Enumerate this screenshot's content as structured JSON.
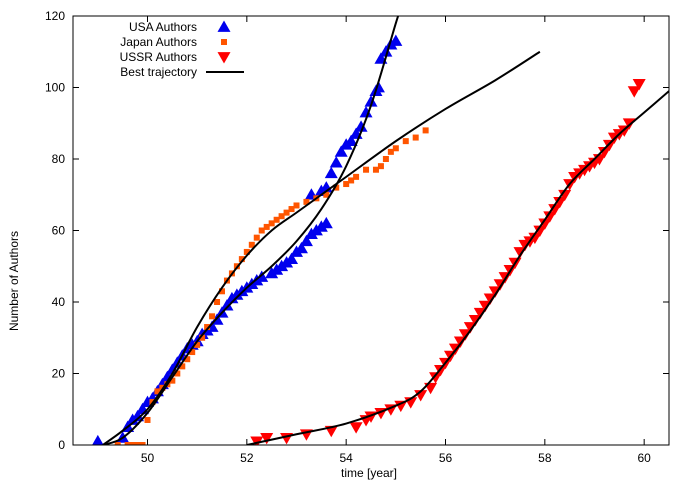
{
  "chart_data": {
    "type": "scatter",
    "xlabel": "time [year]",
    "ylabel": "Number of Authors",
    "xlim": [
      48.5,
      60.5
    ],
    "ylim": [
      0,
      120
    ],
    "x_ticks": [
      50,
      52,
      54,
      56,
      58,
      60
    ],
    "y_ticks": [
      0,
      20,
      40,
      60,
      80,
      100,
      120
    ],
    "x_tick_labels": [
      "50",
      "52",
      "54",
      "56",
      "58",
      "60"
    ],
    "y_tick_labels": [
      "0",
      "20",
      "40",
      "60",
      "80",
      "100",
      "120"
    ],
    "grid": false,
    "legend_position": "top-left",
    "series": [
      {
        "name": "USA Authors",
        "marker": "triangle-up",
        "color": "#0000ee",
        "points": [
          [
            49.0,
            1
          ],
          [
            49.5,
            2
          ],
          [
            49.6,
            5
          ],
          [
            49.7,
            7
          ],
          [
            49.8,
            8
          ],
          [
            49.9,
            10
          ],
          [
            50.0,
            12
          ],
          [
            50.1,
            13
          ],
          [
            50.2,
            15
          ],
          [
            50.3,
            17
          ],
          [
            50.4,
            19
          ],
          [
            50.5,
            21
          ],
          [
            50.6,
            23
          ],
          [
            50.7,
            25
          ],
          [
            50.8,
            27
          ],
          [
            50.9,
            28
          ],
          [
            51.0,
            29
          ],
          [
            51.1,
            31
          ],
          [
            51.2,
            32
          ],
          [
            51.3,
            33
          ],
          [
            51.4,
            35
          ],
          [
            51.5,
            37
          ],
          [
            51.6,
            39
          ],
          [
            51.7,
            41
          ],
          [
            51.8,
            42
          ],
          [
            51.9,
            43
          ],
          [
            52.0,
            44
          ],
          [
            52.1,
            45
          ],
          [
            52.2,
            46
          ],
          [
            52.3,
            47
          ],
          [
            52.5,
            48
          ],
          [
            52.6,
            49
          ],
          [
            52.7,
            50
          ],
          [
            52.8,
            51
          ],
          [
            52.9,
            52
          ],
          [
            53.0,
            54
          ],
          [
            53.1,
            55
          ],
          [
            53.2,
            57
          ],
          [
            53.3,
            59
          ],
          [
            53.4,
            60
          ],
          [
            53.5,
            61
          ],
          [
            53.6,
            62
          ],
          [
            53.3,
            70
          ],
          [
            53.5,
            71
          ],
          [
            53.6,
            72
          ],
          [
            53.7,
            76
          ],
          [
            53.8,
            79
          ],
          [
            53.9,
            82
          ],
          [
            54.0,
            84
          ],
          [
            54.1,
            85
          ],
          [
            54.2,
            87
          ],
          [
            54.3,
            89
          ],
          [
            54.4,
            93
          ],
          [
            54.5,
            96
          ],
          [
            54.6,
            99
          ],
          [
            54.65,
            100
          ],
          [
            54.7,
            108
          ],
          [
            54.8,
            110
          ],
          [
            54.9,
            112
          ],
          [
            55.0,
            113
          ]
        ]
      },
      {
        "name": "Japan Authors",
        "marker": "square",
        "color": "#ff5500",
        "points": [
          [
            49.4,
            0
          ],
          [
            49.6,
            0
          ],
          [
            49.7,
            0
          ],
          [
            49.8,
            0
          ],
          [
            49.9,
            0
          ],
          [
            50.0,
            7
          ],
          [
            50.1,
            12
          ],
          [
            50.2,
            15
          ],
          [
            50.3,
            16
          ],
          [
            50.4,
            17
          ],
          [
            50.5,
            18
          ],
          [
            50.6,
            20
          ],
          [
            50.7,
            22
          ],
          [
            50.8,
            24
          ],
          [
            50.9,
            26
          ],
          [
            51.0,
            28
          ],
          [
            51.1,
            30
          ],
          [
            51.2,
            33
          ],
          [
            51.3,
            36
          ],
          [
            51.4,
            40
          ],
          [
            51.5,
            43
          ],
          [
            51.6,
            46
          ],
          [
            51.7,
            48
          ],
          [
            51.8,
            50
          ],
          [
            51.9,
            52
          ],
          [
            52.0,
            54
          ],
          [
            52.1,
            56
          ],
          [
            52.2,
            58
          ],
          [
            52.3,
            60
          ],
          [
            52.4,
            61
          ],
          [
            52.5,
            62
          ],
          [
            52.6,
            63
          ],
          [
            52.7,
            64
          ],
          [
            52.8,
            65
          ],
          [
            52.9,
            66
          ],
          [
            53.0,
            67
          ],
          [
            53.2,
            68
          ],
          [
            53.4,
            69
          ],
          [
            53.6,
            70
          ],
          [
            53.8,
            72
          ],
          [
            54.0,
            73
          ],
          [
            54.1,
            74
          ],
          [
            54.2,
            75
          ],
          [
            54.4,
            77
          ],
          [
            54.6,
            77
          ],
          [
            54.7,
            78
          ],
          [
            54.8,
            80
          ],
          [
            54.9,
            82
          ],
          [
            55.0,
            83
          ],
          [
            55.2,
            85
          ],
          [
            55.4,
            86
          ],
          [
            55.6,
            88
          ]
        ]
      },
      {
        "name": "USSR Authors",
        "marker": "triangle-down",
        "color": "#ff0000",
        "points": [
          [
            52.2,
            1
          ],
          [
            52.4,
            2
          ],
          [
            52.8,
            2
          ],
          [
            53.2,
            3
          ],
          [
            53.7,
            4
          ],
          [
            54.2,
            5
          ],
          [
            54.4,
            7
          ],
          [
            54.5,
            8
          ],
          [
            54.7,
            9
          ],
          [
            54.9,
            10
          ],
          [
            55.1,
            11
          ],
          [
            55.3,
            12
          ],
          [
            55.5,
            14
          ],
          [
            55.7,
            16
          ],
          [
            55.8,
            19
          ],
          [
            55.9,
            21
          ],
          [
            56.0,
            23
          ],
          [
            56.1,
            25
          ],
          [
            56.2,
            27
          ],
          [
            56.3,
            29
          ],
          [
            56.4,
            31
          ],
          [
            56.5,
            33
          ],
          [
            56.6,
            35
          ],
          [
            56.7,
            37
          ],
          [
            56.8,
            39
          ],
          [
            56.9,
            41
          ],
          [
            57.0,
            43
          ],
          [
            57.1,
            45
          ],
          [
            57.2,
            47
          ],
          [
            57.3,
            49
          ],
          [
            57.4,
            51
          ],
          [
            57.5,
            54
          ],
          [
            57.6,
            56
          ],
          [
            57.7,
            57
          ],
          [
            57.8,
            58
          ],
          [
            57.9,
            60
          ],
          [
            58.0,
            62
          ],
          [
            58.1,
            64
          ],
          [
            58.2,
            66
          ],
          [
            58.3,
            68
          ],
          [
            58.4,
            70
          ],
          [
            58.5,
            73
          ],
          [
            58.6,
            75
          ],
          [
            58.7,
            76
          ],
          [
            58.8,
            77
          ],
          [
            58.9,
            78
          ],
          [
            59.0,
            79
          ],
          [
            59.1,
            80
          ],
          [
            59.2,
            82
          ],
          [
            59.3,
            84
          ],
          [
            59.4,
            86
          ],
          [
            59.5,
            87
          ],
          [
            59.6,
            88
          ],
          [
            59.7,
            90
          ],
          [
            59.8,
            99
          ],
          [
            59.9,
            101
          ]
        ]
      }
    ],
    "lines": [
      {
        "name": "Best trajectory",
        "color": "#000000",
        "curves": [
          [
            [
              49.1,
              0
            ],
            [
              49.5,
              2
            ],
            [
              50.0,
              9
            ],
            [
              50.5,
              19
            ],
            [
              51.0,
              29
            ],
            [
              51.5,
              37
            ],
            [
              52.0,
              44
            ],
            [
              52.5,
              50
            ],
            [
              53.0,
              57
            ],
            [
              53.5,
              66
            ],
            [
              54.0,
              78
            ],
            [
              54.5,
              95
            ],
            [
              55.0,
              118
            ],
            [
              55.1,
              122
            ]
          ],
          [
            [
              49.1,
              0
            ],
            [
              49.5,
              4
            ],
            [
              50.0,
              10
            ],
            [
              50.5,
              20
            ],
            [
              51.0,
              33
            ],
            [
              51.5,
              44
            ],
            [
              52.0,
              53
            ],
            [
              52.5,
              60
            ],
            [
              53.0,
              65
            ],
            [
              53.5,
              70
            ],
            [
              54.0,
              75
            ],
            [
              55.0,
              85
            ],
            [
              56.0,
              94
            ],
            [
              57.0,
              102
            ],
            [
              57.9,
              110
            ]
          ],
          [
            [
              52.0,
              0
            ],
            [
              53.0,
              3
            ],
            [
              54.0,
              6
            ],
            [
              55.0,
              11
            ],
            [
              55.5,
              15
            ],
            [
              56.0,
              23
            ],
            [
              56.5,
              32
            ],
            [
              57.0,
              42
            ],
            [
              57.5,
              53
            ],
            [
              58.0,
              63
            ],
            [
              58.5,
              73
            ],
            [
              59.0,
              80
            ],
            [
              59.5,
              87
            ],
            [
              60.0,
              93
            ],
            [
              60.5,
              99
            ]
          ]
        ]
      }
    ]
  }
}
